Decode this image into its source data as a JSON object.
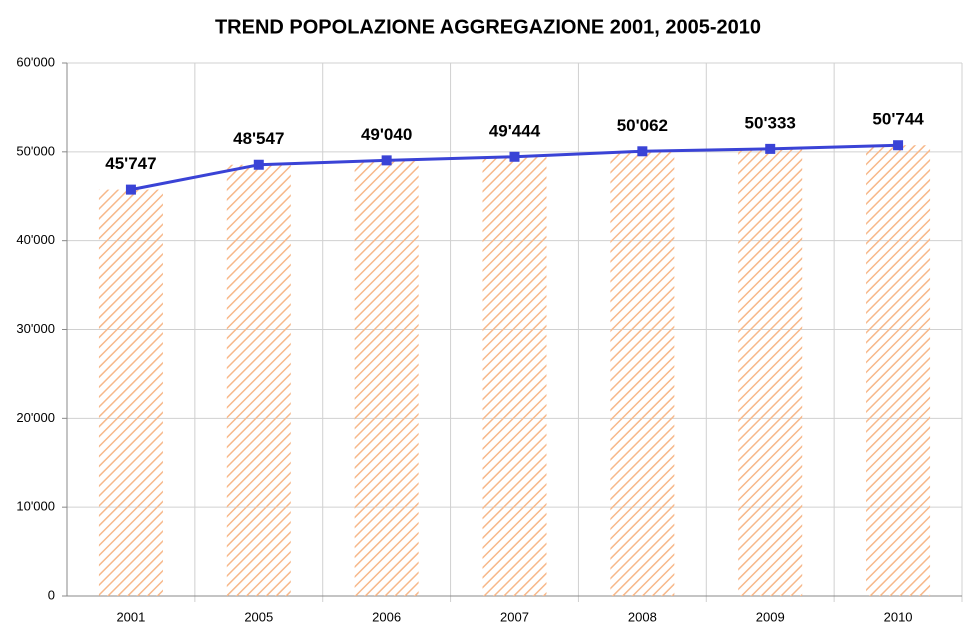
{
  "chart_data": {
    "type": "bar",
    "title": "TREND POPOLAZIONE AGGREGAZIONE 2001, 2005-2010",
    "categories": [
      "2001",
      "2005",
      "2006",
      "2007",
      "2008",
      "2009",
      "2010"
    ],
    "values": [
      45747,
      48547,
      49040,
      49444,
      50062,
      50333,
      50744
    ],
    "value_labels": [
      "45'747",
      "48'547",
      "49'040",
      "49'444",
      "50'062",
      "50'333",
      "50'744"
    ],
    "color": "#f7b88a",
    "line_color": "#3a43d6",
    "ylim": [
      0,
      60000
    ],
    "yticks": [
      0,
      {
        "value": 10000,
        "label": "10'000"
      },
      {
        "value": 20000,
        "label": "20'000"
      },
      {
        "value": 30000,
        "label": "30'000"
      },
      {
        "value": 40000,
        "label": "40'000"
      },
      {
        "value": 50000,
        "label": "50'000"
      },
      {
        "value": 60000,
        "label": "60'000"
      }
    ],
    "grid": true
  }
}
